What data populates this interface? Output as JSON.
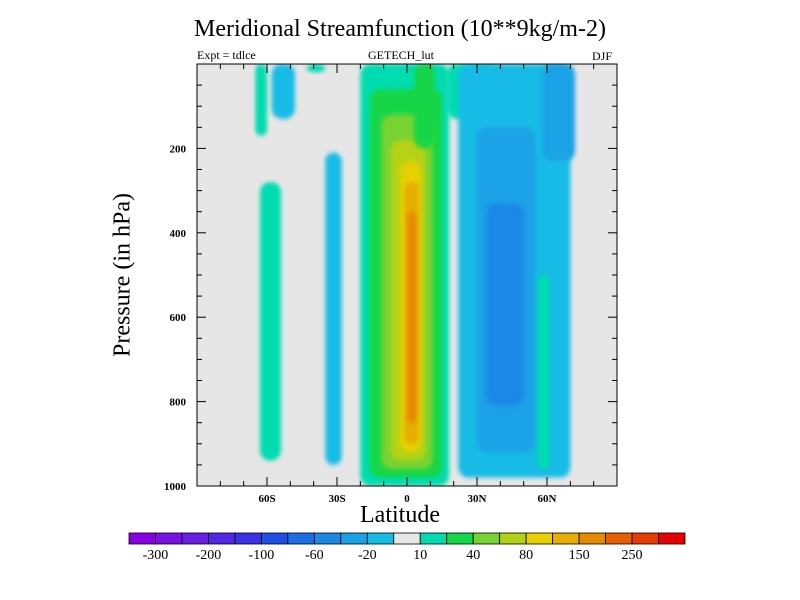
{
  "chart_data": {
    "type": "heatmap",
    "title": "Meridional Streamfunction (10**9kg/m-2)",
    "subtitle_left": "Expt = tdlce",
    "subtitle_center": "GETECH_lut",
    "subtitle_right": "DJF",
    "xlabel": "Latitude",
    "ylabel": "Pressure (in hPa)",
    "xlim": [
      -90,
      90
    ],
    "ylim": [
      0,
      1000
    ],
    "y_inverted": true,
    "x_ticks": [
      {
        "value": -60,
        "label": "60S"
      },
      {
        "value": -30,
        "label": "30S"
      },
      {
        "value": 0,
        "label": "0"
      },
      {
        "value": 30,
        "label": "30N"
      },
      {
        "value": 60,
        "label": "60N"
      }
    ],
    "y_ticks": [
      {
        "value": 200,
        "label": "200"
      },
      {
        "value": 400,
        "label": "400"
      },
      {
        "value": 600,
        "label": "600"
      },
      {
        "value": 800,
        "label": "800"
      },
      {
        "value": 1000,
        "label": "1000"
      }
    ],
    "colorbar": {
      "levels": [
        -300,
        -250,
        -200,
        -150,
        -100,
        -80,
        -60,
        -40,
        -20,
        -10,
        10,
        20,
        40,
        60,
        80,
        100,
        150,
        200,
        250,
        300
      ],
      "labels": [
        "-300",
        "-200",
        "-100",
        "-60",
        "-20",
        "10",
        "40",
        "80",
        "150",
        "250"
      ],
      "colors": [
        "#8a00e6",
        "#7a12e6",
        "#6a1ee6",
        "#5228e6",
        "#3a32e6",
        "#1f50e6",
        "#1e6ee6",
        "#1c88e6",
        "#1ba2e6",
        "#17bce6",
        "#e6e6e6",
        "#00dcb0",
        "#14d646",
        "#78d232",
        "#b4d214",
        "#e6d000",
        "#e6ae00",
        "#e68a00",
        "#e66000",
        "#e63c00",
        "#e60000"
      ]
    },
    "cells": [
      {
        "lat": [
          -65,
          -60
        ],
        "p": [
          0,
          170
        ],
        "bin": 11
      },
      {
        "lat": [
          -58,
          -48
        ],
        "p": [
          0,
          130
        ],
        "bin": 9
      },
      {
        "lat": [
          -63,
          -54
        ],
        "p": [
          280,
          940
        ],
        "bin": 11
      },
      {
        "lat": [
          -35,
          -28
        ],
        "p": [
          210,
          950
        ],
        "bin": 9
      },
      {
        "lat": [
          -43,
          -35
        ],
        "p": [
          0,
          20
        ],
        "bin": 11
      },
      {
        "lat": [
          -20,
          18
        ],
        "p": [
          0,
          1000
        ],
        "bin": 11
      },
      {
        "lat": [
          -16,
          15
        ],
        "p": [
          60,
          980
        ],
        "bin": 12
      },
      {
        "lat": [
          -11,
          11
        ],
        "p": [
          120,
          960
        ],
        "bin": 13
      },
      {
        "lat": [
          -7,
          8
        ],
        "p": [
          180,
          940
        ],
        "bin": 14
      },
      {
        "lat": [
          -3,
          6
        ],
        "p": [
          230,
          920
        ],
        "bin": 15
      },
      {
        "lat": [
          -1,
          5
        ],
        "p": [
          280,
          900
        ],
        "bin": 16
      },
      {
        "lat": [
          0,
          4
        ],
        "p": [
          350,
          850
        ],
        "bin": 17
      },
      {
        "lat": [
          3,
          12
        ],
        "p": [
          0,
          200
        ],
        "bin": 12
      },
      {
        "lat": [
          17,
          40
        ],
        "p": [
          0,
          130
        ],
        "bin": 11
      },
      {
        "lat": [
          22,
          70
        ],
        "p": [
          0,
          980
        ],
        "bin": 9
      },
      {
        "lat": [
          30,
          55
        ],
        "p": [
          150,
          920
        ],
        "bin": 8
      },
      {
        "lat": [
          34,
          50
        ],
        "p": [
          330,
          810
        ],
        "bin": 7
      },
      {
        "lat": [
          58,
          72
        ],
        "p": [
          0,
          230
        ],
        "bin": 8
      },
      {
        "lat": [
          56,
          61
        ],
        "p": [
          500,
          960
        ],
        "bin": 11
      }
    ]
  }
}
